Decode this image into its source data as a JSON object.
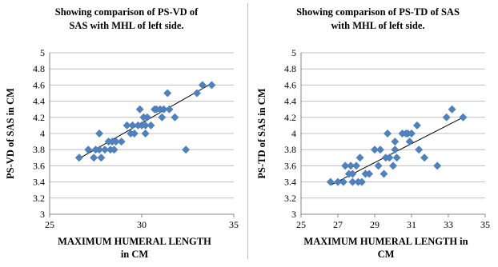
{
  "chart_data": [
    {
      "type": "scatter",
      "title_lines": [
        "Showing comparison of PS-VD of",
        "SAS  with MHL of left side."
      ],
      "xlabel_lines": [
        "MAXIMUM HUMERAL LENGTH",
        "in CM"
      ],
      "ylabel": "PS-VD of SAS in CM",
      "xlim": [
        25,
        35
      ],
      "ylim": [
        3,
        5
      ],
      "xticks": [
        "25",
        "30",
        "35"
      ],
      "yticks": [
        "3",
        "3.2",
        "3.4",
        "3.6",
        "3.8",
        "4",
        "4.2",
        "4.4",
        "4.6",
        "4.8",
        "5"
      ],
      "grid": "horizontal",
      "marker_color": "#4f81bd",
      "trendline": {
        "x": [
          26.6,
          33.8
        ],
        "y": [
          3.69,
          4.62
        ]
      },
      "points": [
        [
          26.6,
          3.7
        ],
        [
          27.1,
          3.8
        ],
        [
          27.4,
          3.7
        ],
        [
          27.5,
          3.8
        ],
        [
          27.7,
          4.0
        ],
        [
          27.7,
          3.8
        ],
        [
          27.8,
          3.7
        ],
        [
          28.0,
          3.8
        ],
        [
          28.2,
          3.9
        ],
        [
          28.3,
          3.8
        ],
        [
          28.4,
          3.9
        ],
        [
          28.5,
          3.8
        ],
        [
          28.6,
          3.9
        ],
        [
          28.9,
          3.9
        ],
        [
          29.2,
          4.1
        ],
        [
          29.4,
          4.0
        ],
        [
          29.5,
          4.1
        ],
        [
          29.6,
          4.0
        ],
        [
          29.8,
          4.1
        ],
        [
          29.9,
          4.3
        ],
        [
          30.0,
          4.1
        ],
        [
          30.1,
          4.2
        ],
        [
          30.2,
          4.0
        ],
        [
          30.2,
          4.1
        ],
        [
          30.3,
          4.2
        ],
        [
          30.5,
          4.1
        ],
        [
          30.7,
          4.3
        ],
        [
          30.8,
          4.3
        ],
        [
          31.0,
          4.3
        ],
        [
          31.1,
          4.2
        ],
        [
          31.2,
          4.3
        ],
        [
          31.4,
          4.5
        ],
        [
          31.5,
          4.3
        ],
        [
          31.8,
          4.2
        ],
        [
          32.4,
          3.8
        ],
        [
          33.0,
          4.5
        ],
        [
          33.3,
          4.6
        ],
        [
          33.8,
          4.6
        ]
      ]
    },
    {
      "type": "scatter",
      "title_lines": [
        "Showing comparison of PS-TD of SAS",
        "with MHL of left side."
      ],
      "xlabel_lines": [
        "MAXIMUM HUMERAL LENGTH in",
        "CM"
      ],
      "ylabel": "PS-TD of SAS in CM",
      "xlim": [
        25,
        35
      ],
      "ylim": [
        3,
        5
      ],
      "xticks": [
        "25",
        "27",
        "29",
        "31",
        "33",
        "35"
      ],
      "yticks": [
        "3",
        "3.2",
        "3.4",
        "3.6",
        "3.8",
        "4",
        "4.2",
        "4.4",
        "4.6",
        "4.8",
        "5"
      ],
      "grid": "horizontal",
      "marker_color": "#4f81bd",
      "trendline": {
        "x": [
          26.6,
          33.8
        ],
        "y": [
          3.36,
          4.2
        ]
      },
      "points": [
        [
          26.6,
          3.4
        ],
        [
          27.0,
          3.4
        ],
        [
          27.3,
          3.4
        ],
        [
          27.4,
          3.6
        ],
        [
          27.6,
          3.5
        ],
        [
          27.7,
          3.6
        ],
        [
          27.8,
          3.5
        ],
        [
          27.8,
          3.4
        ],
        [
          28.0,
          3.6
        ],
        [
          28.1,
          3.4
        ],
        [
          28.2,
          3.7
        ],
        [
          28.3,
          3.4
        ],
        [
          28.5,
          3.5
        ],
        [
          28.7,
          3.5
        ],
        [
          29.0,
          3.8
        ],
        [
          29.2,
          3.6
        ],
        [
          29.3,
          3.8
        ],
        [
          29.5,
          3.5
        ],
        [
          29.6,
          3.7
        ],
        [
          29.7,
          4.0
        ],
        [
          29.8,
          3.7
        ],
        [
          30.0,
          3.6
        ],
        [
          30.1,
          3.8
        ],
        [
          30.1,
          3.9
        ],
        [
          30.2,
          3.7
        ],
        [
          30.5,
          4.0
        ],
        [
          30.7,
          4.0
        ],
        [
          30.8,
          4.0
        ],
        [
          30.9,
          3.9
        ],
        [
          31.0,
          4.0
        ],
        [
          31.3,
          4.1
        ],
        [
          31.4,
          3.8
        ],
        [
          31.7,
          3.7
        ],
        [
          32.4,
          3.6
        ],
        [
          32.9,
          4.2
        ],
        [
          33.2,
          4.3
        ],
        [
          33.8,
          4.2
        ]
      ]
    }
  ]
}
